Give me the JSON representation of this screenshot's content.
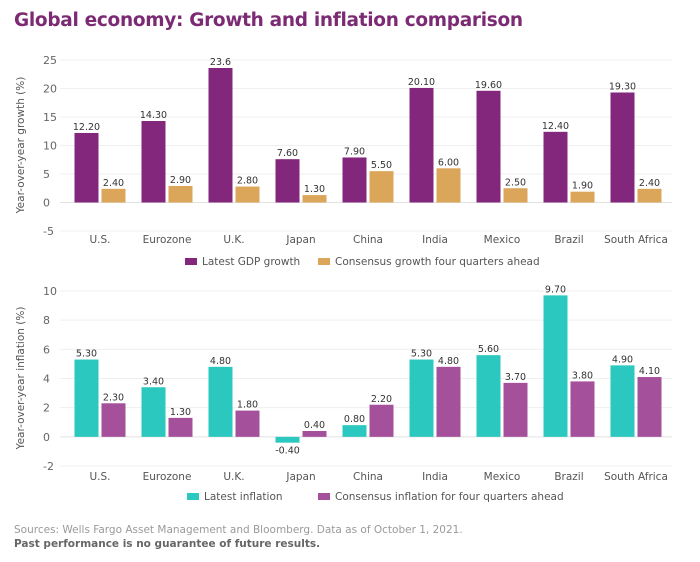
{
  "title": "Global economy: Growth and inflation comparison",
  "chart_data": [
    {
      "type": "bar",
      "ylabel": "Year-over-year growth (%)",
      "xlabel": "",
      "ylim": [
        -5,
        25
      ],
      "yticks": [
        -5,
        0,
        5,
        10,
        15,
        20,
        25
      ],
      "grid": true,
      "legend": "bottom",
      "categories": [
        "U.S.",
        "Eurozone",
        "U.K.",
        "Japan",
        "China",
        "India",
        "Mexico",
        "Brazil",
        "South Africa"
      ],
      "series": [
        {
          "name": "Latest GDP growth",
          "color": "#83277c",
          "values": [
            12.2,
            14.3,
            23.6,
            7.6,
            7.9,
            20.1,
            19.6,
            12.4,
            19.3
          ],
          "labels": [
            "12.20",
            "14.30",
            "23.6",
            "7.60",
            "7.90",
            "20.10",
            "19.60",
            "12.40",
            "19.30"
          ]
        },
        {
          "name": "Consensus growth four quarters ahead",
          "color": "#dba659",
          "values": [
            2.4,
            2.9,
            2.8,
            1.3,
            5.5,
            6.0,
            2.5,
            1.9,
            2.4
          ],
          "labels": [
            "2.40",
            "2.90",
            "2.80",
            "1.30",
            "5.50",
            "6.00",
            "2.50",
            "1.90",
            "2.40"
          ]
        }
      ]
    },
    {
      "type": "bar",
      "ylabel": "Year-over-year inflation (%)",
      "xlabel": "",
      "ylim": [
        -2,
        10
      ],
      "yticks": [
        -2,
        0,
        2,
        4,
        6,
        8,
        10
      ],
      "grid": true,
      "legend": "bottom",
      "categories": [
        "U.S.",
        "Eurozone",
        "U.K.",
        "Japan",
        "China",
        "India",
        "Mexico",
        "Brazil",
        "South Africa"
      ],
      "series": [
        {
          "name": "Latest inflation",
          "color": "#2ac8bf",
          "values": [
            5.3,
            3.4,
            4.8,
            -0.4,
            0.8,
            5.3,
            5.6,
            9.7,
            4.9
          ],
          "labels": [
            "5.30",
            "3.40",
            "4.80",
            "-0.40",
            "0.80",
            "5.30",
            "5.60",
            "9.70",
            "4.90"
          ]
        },
        {
          "name": "Consensus inflation for four quarters ahead",
          "color": "#a5509b",
          "values": [
            2.3,
            1.3,
            1.8,
            0.4,
            2.2,
            4.8,
            3.7,
            3.8,
            4.1
          ],
          "labels": [
            "2.30",
            "1.30",
            "1.80",
            "0.40",
            "2.20",
            "4.80",
            "3.70",
            "3.80",
            "4.10"
          ]
        }
      ]
    }
  ],
  "footer": {
    "sources": "Sources: Wells Fargo Asset Management and Bloomberg. Data as of October 1, 2021.",
    "disclaimer": "Past performance is no guarantee of future results."
  }
}
